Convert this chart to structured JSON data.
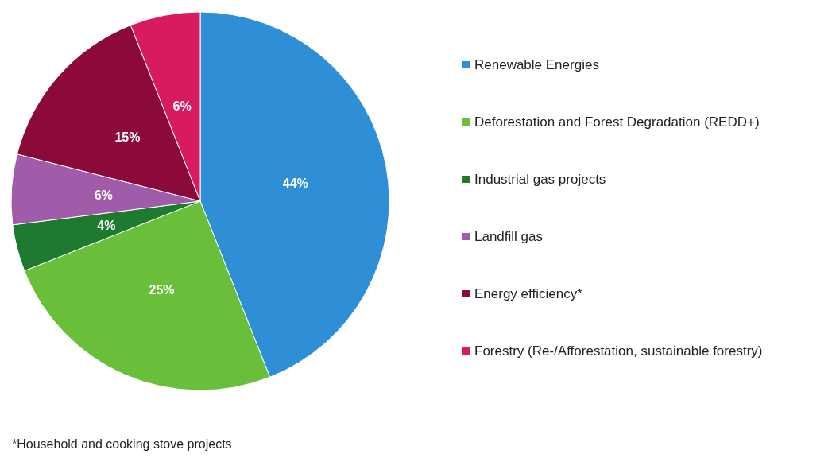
{
  "chart_data": {
    "type": "pie",
    "categories": [
      "Renewable Energies",
      "Deforestation and Forest Degradation (REDD+)",
      "Industrial gas projects",
      "Landfill gas",
      "Energy efficiency*",
      "Forestry (Re-/Afforestation, sustainable forestry)"
    ],
    "values": [
      44,
      25,
      4,
      6,
      15,
      6
    ],
    "value_labels": [
      "44%",
      "25%",
      "4%",
      "6%",
      "15%",
      "6%"
    ],
    "colors": [
      "#2e8fd6",
      "#6abf3a",
      "#1e7a2e",
      "#a05ca8",
      "#8b0a3a",
      "#d81b60"
    ],
    "legend": "right",
    "annotations": [
      "*Household and cooking stove projects"
    ]
  }
}
